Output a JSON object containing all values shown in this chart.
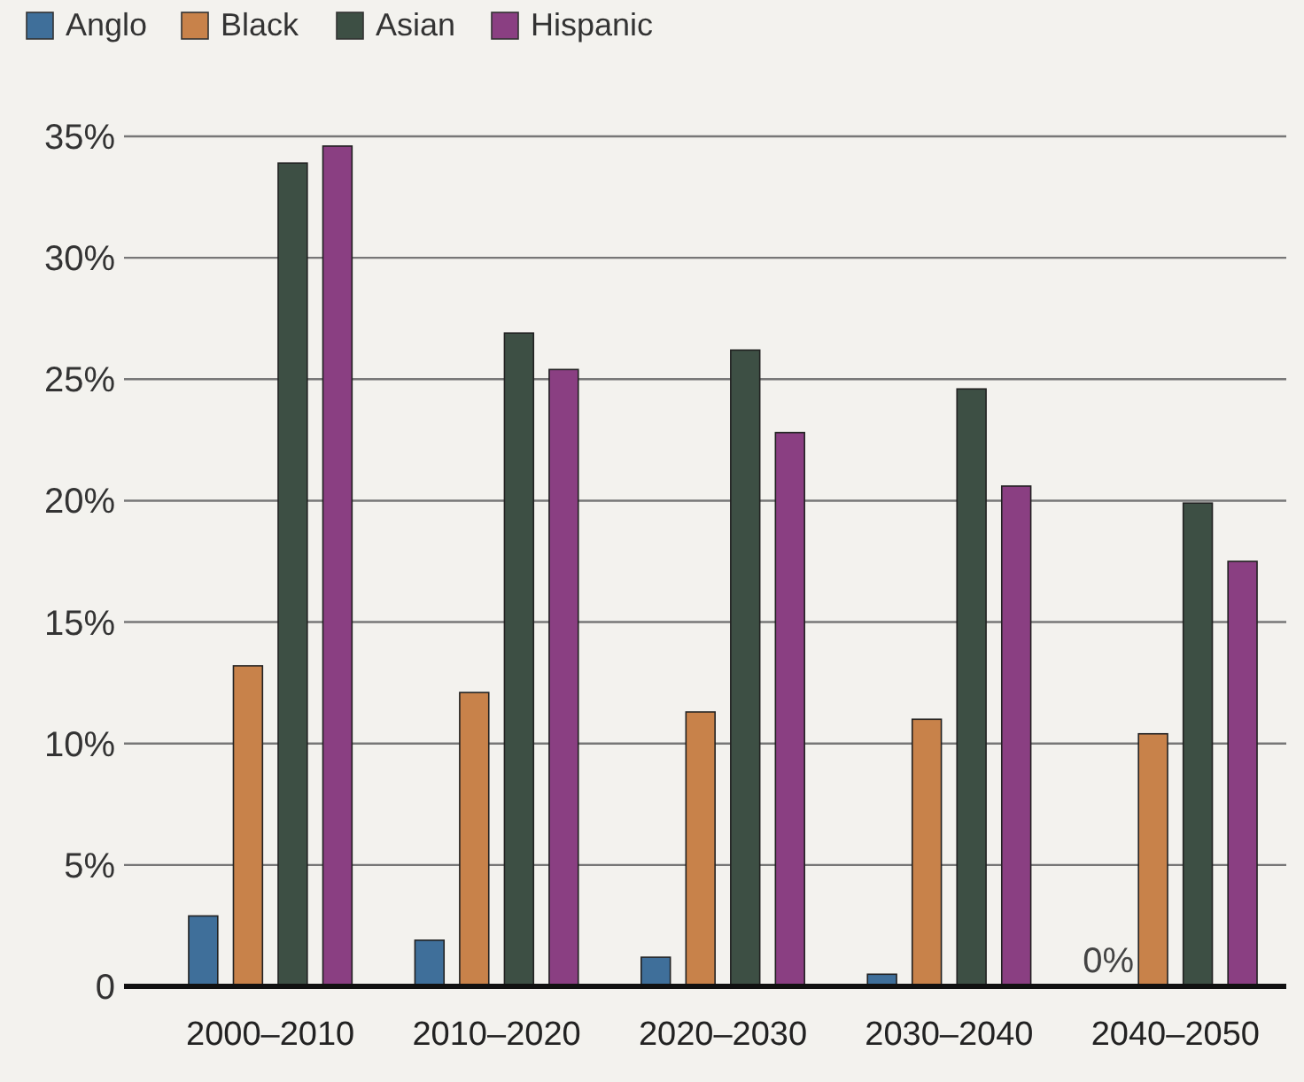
{
  "chart_data": {
    "type": "bar",
    "categories": [
      "2000–2010",
      "2010–2020",
      "2020–2030",
      "2030–2040",
      "2040–2050"
    ],
    "series": [
      {
        "name": "Anglo",
        "color": "#3f6f9a",
        "values": [
          2.9,
          1.9,
          1.2,
          0.5,
          0
        ]
      },
      {
        "name": "Black",
        "color": "#c8824a",
        "values": [
          13.2,
          12.1,
          11.3,
          11,
          10.4
        ]
      },
      {
        "name": "Asian",
        "color": "#3d4f44",
        "values": [
          33.9,
          26.9,
          26.2,
          24.6,
          19.9
        ]
      },
      {
        "name": "Hispanic",
        "color": "#8a3f82",
        "values": [
          34.6,
          25.4,
          22.8,
          20.6,
          17.5
        ]
      }
    ],
    "ylim": [
      0,
      35
    ],
    "yticks": [
      {
        "value": 0,
        "label": "0"
      },
      {
        "value": 5,
        "label": "5%"
      },
      {
        "value": 10,
        "label": "10%"
      },
      {
        "value": 15,
        "label": "15%"
      },
      {
        "value": 20,
        "label": "20%"
      },
      {
        "value": 25,
        "label": "25%"
      },
      {
        "value": 30,
        "label": "30%"
      },
      {
        "value": 35,
        "label": "35%"
      }
    ],
    "grid": "y",
    "legend": "top left",
    "annotations": [
      {
        "text": "0%",
        "x": "2040–2050",
        "y": 0
      }
    ]
  }
}
